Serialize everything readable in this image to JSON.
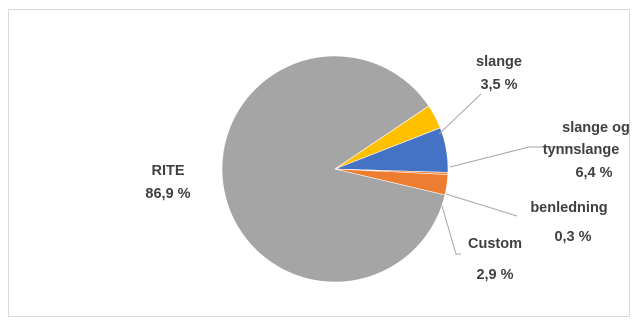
{
  "chart_data": {
    "type": "pie",
    "title": "",
    "slices": [
      {
        "label": "RITE",
        "value": 86.9,
        "value_text": "86,9 %",
        "color": "#a5a5a5"
      },
      {
        "label": "slange",
        "value": 3.5,
        "value_text": "3,5 %",
        "color": "#ffc000"
      },
      {
        "label": "slange og tynnslange",
        "value": 6.4,
        "value_text": "6,4 %",
        "color": "#4472c4"
      },
      {
        "label": "benledning",
        "value": 0.3,
        "value_text": "0,3 %",
        "color": "#ed7d31"
      },
      {
        "label": "Custom",
        "value": 2.9,
        "value_text": "2,9 %",
        "color": "#ed7d31"
      }
    ],
    "legend": "none",
    "label_style": "outside with leader lines"
  }
}
